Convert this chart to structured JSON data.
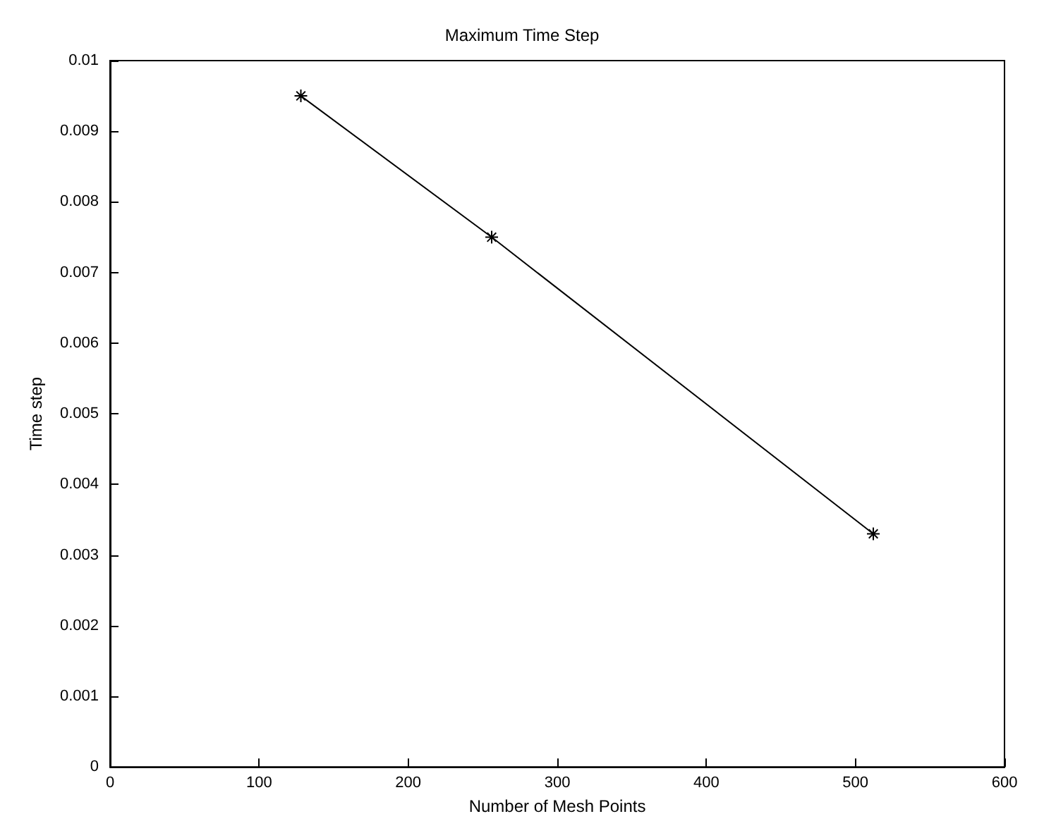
{
  "chart_data": {
    "type": "line",
    "title": "Maximum Time Step",
    "xlabel": "Number of Mesh Points",
    "ylabel": "Time step",
    "x": [
      128,
      256,
      512
    ],
    "series": [
      {
        "color": "#000000",
        "values": [
          0.0095,
          0.0075,
          0.0033
        ]
      }
    ],
    "xlim": [
      0,
      600
    ],
    "xticks": [
      0,
      100,
      200,
      300,
      400,
      500,
      600
    ],
    "ylim": [
      0,
      0.01
    ],
    "yticks": [
      0,
      0.001,
      0.002,
      0.003,
      0.004,
      0.005,
      0.006,
      0.007,
      0.008,
      0.009,
      0.01
    ],
    "grid": false,
    "marker": "cross",
    "line_style": "solid"
  }
}
